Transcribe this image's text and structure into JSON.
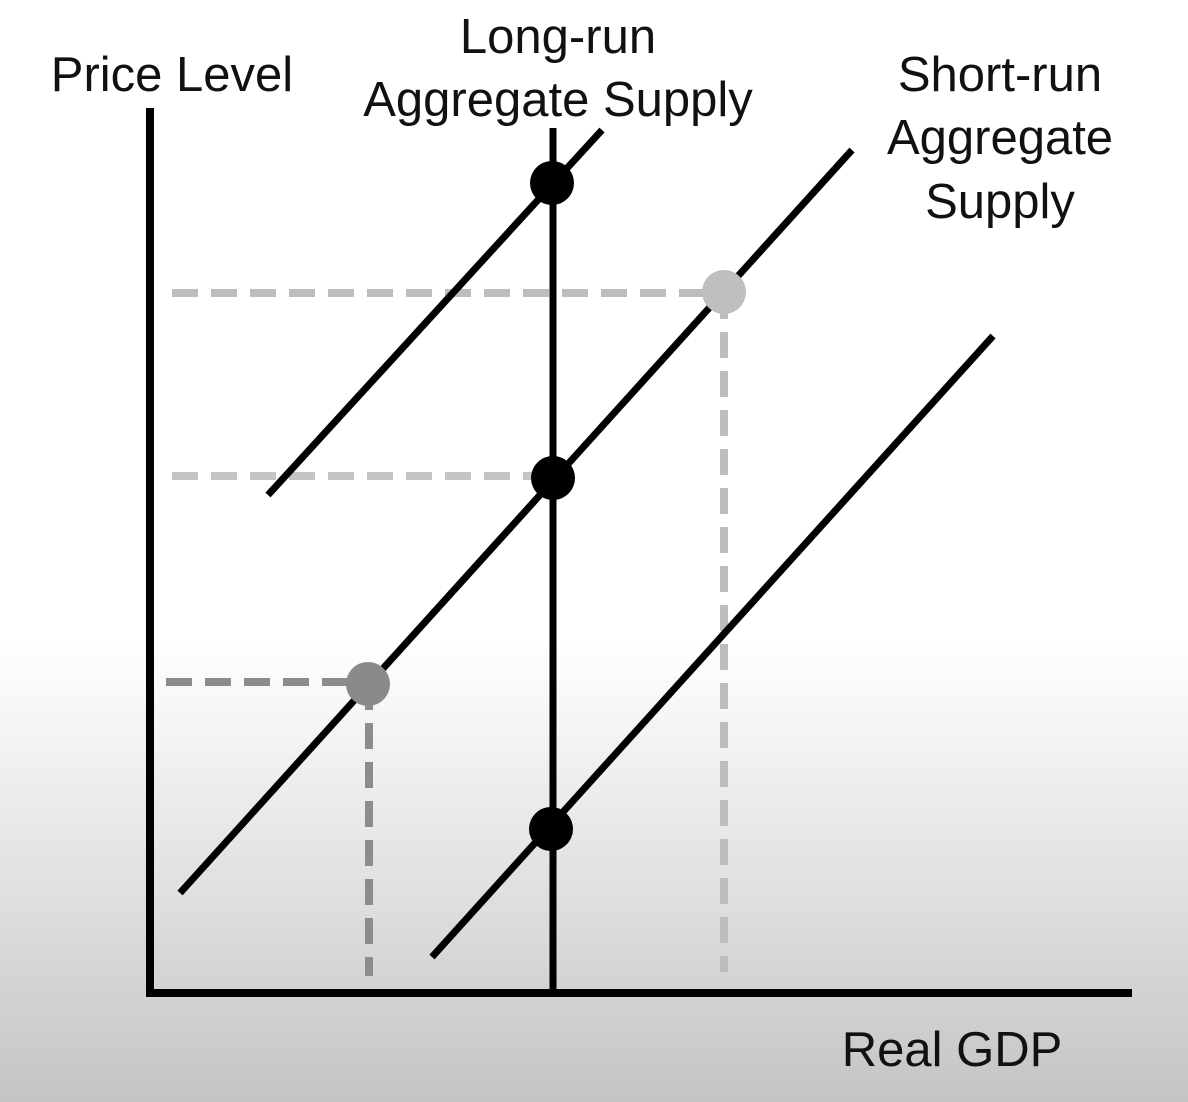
{
  "labels": {
    "y_axis": "Price Level",
    "x_axis": "Real GDP",
    "lras_line1": "Long-run",
    "lras_line2": "Aggregate Supply",
    "sras_line1": "Short-run",
    "sras_line2": "Aggregate",
    "sras_line3": "Supply"
  },
  "colors": {
    "curve": "#000000",
    "guide_dark": "#8c8c8c",
    "guide_light": "#bdbdbd",
    "point_black": "#000000",
    "point_gray_dark": "#8a8a8a",
    "point_gray_light": "#bfbfbf"
  },
  "diagram": {
    "curves": [
      "SRAS upper",
      "SRAS middle",
      "SRAS lower",
      "LRAS vertical"
    ],
    "points": [
      {
        "on": "LRAS and upper SRAS",
        "style": "black"
      },
      {
        "on": "LRAS and middle SRAS",
        "style": "black"
      },
      {
        "on": "LRAS and lower SRAS",
        "style": "black"
      },
      {
        "on": "middle SRAS, left of LRAS",
        "style": "gray-dark"
      },
      {
        "on": "middle SRAS, right of LRAS",
        "style": "gray-light"
      }
    ]
  }
}
